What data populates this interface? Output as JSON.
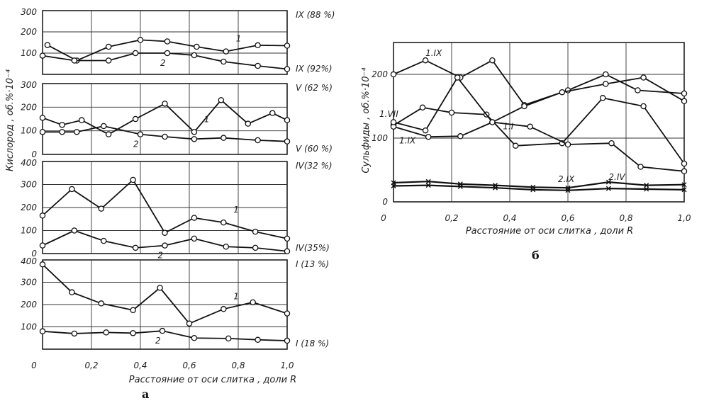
{
  "chart_data": [
    {
      "panel": "a",
      "type": "line",
      "ylabel": "Кислород , об.%·10⁻⁴",
      "xlabel": "Расстояние от оси слитка , доли R",
      "x_ticks": [
        "0",
        "0,2",
        "0,4",
        "0,6",
        "0,8",
        "1,0"
      ],
      "xlim": [
        0,
        1.0
      ],
      "grid": true,
      "subplots": [
        {
          "yticks": [
            "300",
            "200",
            "100"
          ],
          "ylim": [
            0,
            300
          ],
          "right_labels": [
            "IX (88 %)",
            "IX (92%)"
          ],
          "series": [
            {
              "name": "1",
              "x": [
                0.02,
                0.14,
                0.27,
                0.4,
                0.51,
                0.63,
                0.75,
                0.88,
                1.0
              ],
              "y": [
                138,
                65,
                130,
                162,
                155,
                130,
                108,
                137,
                135
              ]
            },
            {
              "name": "2",
              "x": [
                0,
                0.13,
                0.27,
                0.38,
                0.51,
                0.62,
                0.74,
                0.88,
                1.0
              ],
              "y": [
                88,
                65,
                65,
                100,
                100,
                90,
                60,
                40,
                25
              ]
            }
          ]
        },
        {
          "yticks": [
            "300",
            "200",
            "100",
            "0"
          ],
          "ylim": [
            0,
            300
          ],
          "right_labels": [
            "V (62 %)",
            "V (60 %)"
          ],
          "series": [
            {
              "name": "1",
              "x": [
                0,
                0.08,
                0.16,
                0.27,
                0.38,
                0.5,
                0.62,
                0.73,
                0.84,
                0.94,
                1.0
              ],
              "y": [
                155,
                125,
                145,
                85,
                150,
                215,
                95,
                230,
                130,
                175,
                145
              ]
            },
            {
              "name": "2",
              "x": [
                0,
                0.08,
                0.14,
                0.25,
                0.4,
                0.5,
                0.62,
                0.74,
                0.88,
                1.0
              ],
              "y": [
                95,
                95,
                95,
                120,
                85,
                75,
                65,
                70,
                60,
                55
              ]
            }
          ]
        },
        {
          "yticks": [
            "400",
            "300",
            "200",
            "100",
            "0"
          ],
          "ylim": [
            0,
            400
          ],
          "right_labels": [
            "IV(32 %)",
            "IV(35%)"
          ],
          "series": [
            {
              "name": "1",
              "x": [
                0,
                0.12,
                0.24,
                0.37,
                0.5,
                0.62,
                0.74,
                0.87,
                1.0
              ],
              "y": [
                165,
                280,
                195,
                320,
                90,
                155,
                135,
                95,
                65
              ]
            },
            {
              "name": "2",
              "x": [
                0,
                0.13,
                0.25,
                0.38,
                0.5,
                0.62,
                0.75,
                0.87,
                1.0
              ],
              "y": [
                35,
                100,
                55,
                25,
                35,
                65,
                30,
                25,
                10
              ]
            }
          ]
        },
        {
          "yticks": [
            "400",
            "300",
            "200",
            "100"
          ],
          "ylim": [
            0,
            400
          ],
          "right_labels": [
            "I (13 %)",
            "I (18 %)"
          ],
          "series": [
            {
              "name": "1",
              "x": [
                0,
                0.12,
                0.24,
                0.37,
                0.48,
                0.6,
                0.74,
                0.86,
                1.0
              ],
              "y": [
                380,
                255,
                205,
                175,
                275,
                115,
                180,
                210,
                160
              ]
            },
            {
              "name": "2",
              "x": [
                0,
                0.13,
                0.26,
                0.37,
                0.49,
                0.62,
                0.76,
                0.88,
                1.0
              ],
              "y": [
                80,
                70,
                75,
                72,
                82,
                50,
                48,
                42,
                38
              ]
            }
          ]
        }
      ]
    },
    {
      "panel": "б",
      "type": "line",
      "ylabel": "Сульфиды , об.%·10⁻⁴",
      "xlabel": "Расстояние от оси слитка , доли R",
      "x_ticks": [
        "0",
        "0,2",
        "0,4",
        "0,6",
        "0,8",
        "1,0"
      ],
      "y_ticks": [
        "200",
        "100",
        "0"
      ],
      "xlim": [
        0,
        1.0
      ],
      "ylim": [
        0,
        250
      ],
      "grid": true,
      "series": [
        {
          "name": "1.IX",
          "marker": "circle",
          "x": [
            0,
            0.11,
            0.23,
            0.34,
            0.45,
            0.6,
            0.73,
            0.84,
            1.0
          ],
          "y": [
            200,
            222,
            195,
            222,
            152,
            175,
            200,
            175,
            170
          ]
        },
        {
          "name": "1.VII",
          "marker": "circle",
          "x": [
            0,
            0.1,
            0.2,
            0.32,
            0.42,
            0.58,
            0.72,
            0.86,
            1.0
          ],
          "y": [
            120,
            148,
            140,
            137,
            88,
            92,
            163,
            150,
            60
          ]
        },
        {
          "name": "1.I",
          "marker": "circle",
          "x": [
            0,
            0.12,
            0.23,
            0.34,
            0.45,
            0.58,
            0.73,
            0.86,
            1.0
          ],
          "y": [
            118,
            102,
            103,
            125,
            150,
            172,
            185,
            195,
            158
          ]
        },
        {
          "name": "1.IX",
          "marker": "circle",
          "x": [
            0,
            0.11,
            0.22,
            0.34,
            0.47,
            0.6,
            0.75,
            0.85,
            1.0
          ],
          "y": [
            125,
            112,
            195,
            125,
            118,
            90,
            92,
            55,
            48
          ]
        },
        {
          "name": "2.IX",
          "marker": "cross",
          "x": [
            0,
            0.12,
            0.23,
            0.35,
            0.48,
            0.6,
            0.74,
            0.87,
            1.0
          ],
          "y": [
            30,
            32,
            28,
            26,
            23,
            22,
            31,
            26,
            27
          ]
        },
        {
          "name": "2.IV",
          "marker": "cross",
          "x": [
            0,
            0.12,
            0.23,
            0.35,
            0.48,
            0.6,
            0.74,
            0.87,
            1.0
          ],
          "y": [
            25,
            26,
            24,
            22,
            19,
            18,
            21,
            20,
            19
          ]
        }
      ]
    }
  ],
  "panel_labels": {
    "a": "а",
    "b": "б"
  }
}
